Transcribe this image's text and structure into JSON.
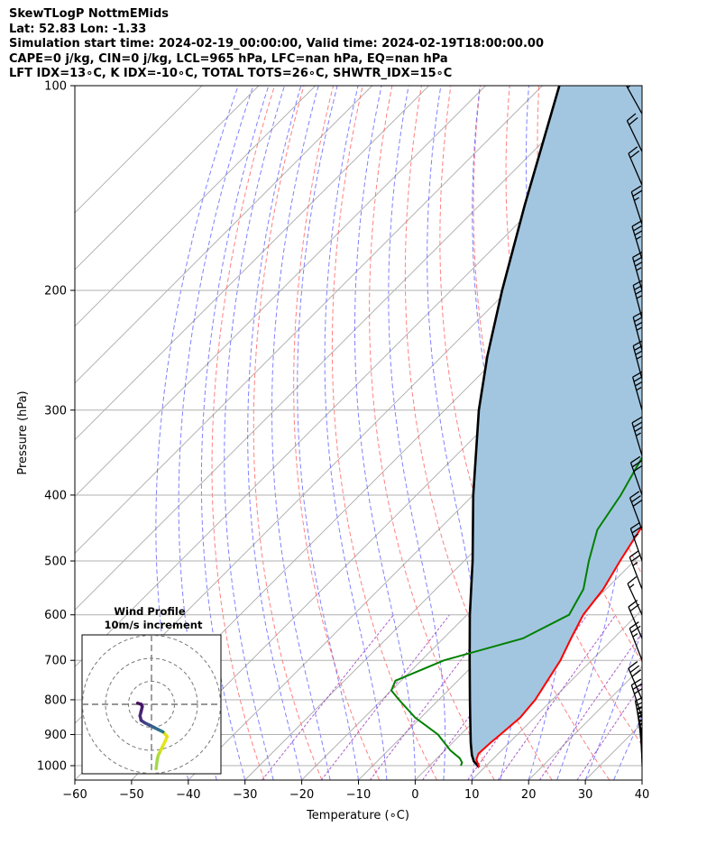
{
  "header": {
    "line1": "SkewTLogP NottmEMids",
    "line2": "Lat: 52.83   Lon: -1.33",
    "line3": "Simulation start time: 2024-02-19_00:00:00, Valid time: 2024-02-19T18:00:00.00",
    "line4": "CAPE=0 j/kg, CIN=0 j/kg, LCL=965 hPa, LFC=nan hPa, EQ=nan hPa",
    "line5": "LFT IDX=13∘C, K IDX=-10∘C, TOTAL TOTS=26∘C, SHWTR_IDX=15∘C"
  },
  "chart_data": {
    "type": "skewt-logp",
    "xlabel": "Temperature (∘C)",
    "ylabel": "Pressure (hPa)",
    "xlim": [
      -60,
      40
    ],
    "ylim": [
      1050,
      100
    ],
    "x_ticks": [
      -60,
      -50,
      -40,
      -30,
      -20,
      -10,
      0,
      10,
      20,
      30,
      40
    ],
    "x_tick_labels": [
      "−60",
      "−50",
      "−40",
      "−30",
      "−20",
      "−10",
      "0",
      "10",
      "20",
      "30",
      "40"
    ],
    "y_ticks": [
      1000,
      900,
      800,
      700,
      600,
      500,
      400,
      300,
      200,
      100
    ],
    "y_tick_labels": [
      "1000",
      "900",
      "800",
      "700",
      "600",
      "500",
      "400",
      "300",
      "200",
      "100"
    ],
    "grid": true,
    "colors": {
      "temperature": "#ff0000",
      "dewpoint": "#008000",
      "parcel": "#000000",
      "cape_fill": "#a3c6e0",
      "dry_adiabat": "#ff5555",
      "moist_adiabat": "#5555ff",
      "mixing_ratio": "#9933bb",
      "isotherm": "#aaaaaa"
    },
    "temperature_profile": [
      [
        1005,
        9
      ],
      [
        980,
        7.2
      ],
      [
        960,
        6.5
      ],
      [
        925,
        6.7
      ],
      [
        900,
        7
      ],
      [
        850,
        7.5
      ],
      [
        800,
        7
      ],
      [
        700,
        4.5
      ],
      [
        650,
        2.5
      ],
      [
        600,
        0.5
      ],
      [
        550,
        -0.5
      ],
      [
        500,
        -2.5
      ],
      [
        450,
        -4.5
      ],
      [
        400,
        -6
      ],
      [
        350,
        -9
      ],
      [
        300,
        -13
      ],
      [
        250,
        -17.5
      ],
      [
        225,
        -20
      ],
      [
        210,
        -21
      ],
      [
        200,
        -21
      ],
      [
        185,
        -20
      ],
      [
        170,
        -17
      ],
      [
        150,
        -12
      ],
      [
        130,
        -4
      ],
      [
        115,
        1
      ],
      [
        100,
        3
      ]
    ],
    "dewpoint_profile": [
      [
        1000,
        5.5
      ],
      [
        990,
        5.2
      ],
      [
        975,
        4
      ],
      [
        950,
        1
      ],
      [
        900,
        -4
      ],
      [
        850,
        -11
      ],
      [
        800,
        -17
      ],
      [
        775,
        -20
      ],
      [
        750,
        -21
      ],
      [
        700,
        -16
      ],
      [
        650,
        -6
      ],
      [
        600,
        -2
      ],
      [
        550,
        -4
      ],
      [
        500,
        -8
      ],
      [
        450,
        -12
      ],
      [
        400,
        -14
      ],
      [
        350,
        -17
      ],
      [
        320,
        -21
      ],
      [
        300,
        -23
      ],
      [
        260,
        -26
      ],
      [
        240,
        -28
      ],
      [
        220,
        -30
      ],
      [
        200,
        -32
      ],
      [
        180,
        -31
      ],
      [
        170,
        -28
      ],
      [
        160,
        -30
      ],
      [
        140,
        -30
      ],
      [
        120,
        -25
      ],
      [
        100,
        -18
      ]
    ],
    "parcel_profile": [
      [
        1005,
        9
      ],
      [
        985,
        7
      ],
      [
        965,
        5.6
      ],
      [
        925,
        3.2
      ],
      [
        850,
        -1.3
      ],
      [
        800,
        -4.5
      ],
      [
        700,
        -11.5
      ],
      [
        600,
        -19.5
      ],
      [
        500,
        -28.5
      ],
      [
        400,
        -40
      ],
      [
        300,
        -54
      ],
      [
        250,
        -62
      ],
      [
        200,
        -71
      ],
      [
        150,
        -82
      ],
      [
        100,
        -97
      ]
    ],
    "wind_barbs": [
      {
        "p": 1000,
        "u": 2,
        "v": 40
      },
      {
        "p": 975,
        "u": 4,
        "v": 38
      },
      {
        "p": 950,
        "u": 6,
        "v": 36
      },
      {
        "p": 925,
        "u": 8,
        "v": 34
      },
      {
        "p": 900,
        "u": 10,
        "v": 32
      },
      {
        "p": 850,
        "u": 14,
        "v": 28
      },
      {
        "p": 800,
        "u": 16,
        "v": 24
      },
      {
        "p": 700,
        "u": 12,
        "v": 20
      },
      {
        "p": 650,
        "u": 12,
        "v": 18
      },
      {
        "p": 600,
        "u": 10,
        "v": 14
      },
      {
        "p": 550,
        "u": 12,
        "v": 20
      },
      {
        "p": 500,
        "u": 12,
        "v": 22
      },
      {
        "p": 450,
        "u": 14,
        "v": 24
      },
      {
        "p": 400,
        "u": 14,
        "v": 26
      },
      {
        "p": 350,
        "u": 14,
        "v": 30
      },
      {
        "p": 300,
        "u": 14,
        "v": 32
      },
      {
        "p": 270,
        "u": 14,
        "v": 34
      },
      {
        "p": 245,
        "u": 14,
        "v": 34
      },
      {
        "p": 220,
        "u": 14,
        "v": 34
      },
      {
        "p": 200,
        "u": 14,
        "v": 32
      },
      {
        "p": 180,
        "u": 14,
        "v": 30
      },
      {
        "p": 160,
        "u": 12,
        "v": 24
      },
      {
        "p": 140,
        "u": 12,
        "v": 18
      },
      {
        "p": 125,
        "u": 12,
        "v": 16
      },
      {
        "p": 110,
        "u": 12,
        "v": 14
      }
    ],
    "hodograph": {
      "title": "Wind Profile",
      "subtitle": "10m/s increment",
      "points": [
        [
          2,
          -28
        ],
        [
          2.5,
          -24
        ],
        [
          3,
          -22
        ],
        [
          4,
          -20
        ],
        [
          5,
          -18
        ],
        [
          6,
          -16
        ],
        [
          6.8,
          -14
        ],
        [
          5,
          -12
        ],
        [
          3,
          -11
        ],
        [
          1,
          -10
        ],
        [
          -1,
          -9
        ],
        [
          -3,
          -8
        ],
        [
          -4.5,
          -7
        ],
        [
          -5,
          -5
        ],
        [
          -4.5,
          -3
        ],
        [
          -4,
          -1
        ],
        [
          -4.5,
          0
        ],
        [
          -6,
          0.5
        ]
      ]
    }
  }
}
